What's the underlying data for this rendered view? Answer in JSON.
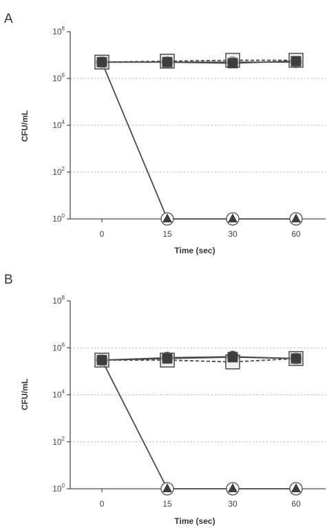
{
  "chart_data": [
    {
      "type": "line",
      "panel": "A",
      "title": "",
      "xlabel": "Time (sec)",
      "ylabel": "CFU/mL",
      "yscale": "log",
      "ylim": [
        1,
        100000000
      ],
      "categories": [
        "0",
        "15",
        "30",
        "60"
      ],
      "y_ticks": [
        {
          "base": "10",
          "exp": "0"
        },
        {
          "base": "10",
          "exp": "2"
        },
        {
          "base": "10",
          "exp": "4"
        },
        {
          "base": "10",
          "exp": "6"
        },
        {
          "base": "10",
          "exp": "8"
        }
      ],
      "grid": "horizontal dotted",
      "series": [
        {
          "marker": "circle",
          "line": "solid",
          "values": [
            5000000,
            5000000,
            5000000,
            5000000
          ]
        },
        {
          "marker": "open-square",
          "line": "dashed",
          "values": [
            5000000,
            5500000,
            6000000,
            6000000
          ]
        },
        {
          "marker": "square",
          "line": "solid",
          "values": [
            5000000,
            5000000,
            4500000,
            5500000
          ]
        },
        {
          "marker": "triangle",
          "line": "solid",
          "values": [
            5000000,
            1,
            1,
            1
          ]
        }
      ]
    },
    {
      "type": "line",
      "panel": "B",
      "title": "",
      "xlabel": "Time (sec)",
      "ylabel": "CFU/mL",
      "yscale": "log",
      "ylim": [
        1,
        100000000
      ],
      "categories": [
        "0",
        "15",
        "30",
        "60"
      ],
      "y_ticks": [
        {
          "base": "10",
          "exp": "0"
        },
        {
          "base": "10",
          "exp": "2"
        },
        {
          "base": "10",
          "exp": "4"
        },
        {
          "base": "10",
          "exp": "6"
        },
        {
          "base": "10",
          "exp": "8"
        }
      ],
      "grid": "horizontal dotted",
      "series": [
        {
          "marker": "circle",
          "line": "solid",
          "values": [
            300000,
            380000,
            420000,
            350000
          ]
        },
        {
          "marker": "open-square",
          "line": "dashed",
          "values": [
            300000,
            300000,
            250000,
            350000
          ]
        },
        {
          "marker": "square",
          "line": "solid",
          "values": [
            300000,
            350000,
            400000,
            350000
          ]
        },
        {
          "marker": "triangle",
          "line": "solid",
          "values": [
            300000,
            1,
            1,
            1
          ]
        }
      ]
    }
  ],
  "colors": {
    "line": "#4a4a4a",
    "marker_fill": "#3d3d3d",
    "open_marker_fill": "#e6e6e6",
    "grid": "#b0b0b0",
    "text": "#333333"
  }
}
